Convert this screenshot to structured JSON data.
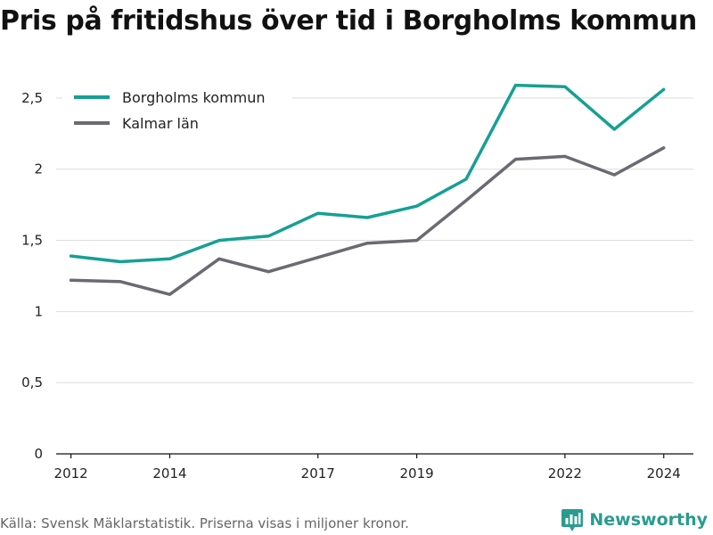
{
  "title": "Pris på fritidshus över tid i Borgholms kommun",
  "source": "Källa: Svensk Mäklarstatistik. Priserna visas i miljoner kronor.",
  "brand": {
    "name": "Newsworthy",
    "icon": "newsworthy-logo-icon",
    "color": "#2a9c8f"
  },
  "chart_data": {
    "type": "line",
    "title": "Pris på fritidshus över tid i Borgholms kommun",
    "x": [
      2012,
      2013,
      2014,
      2015,
      2016,
      2017,
      2018,
      2019,
      2020,
      2021,
      2022,
      2023,
      2024
    ],
    "x_tick_values": [
      2012,
      2014,
      2017,
      2019,
      2022,
      2024
    ],
    "x_tick_labels": [
      "2012",
      "2014",
      "2017",
      "2019",
      "2022",
      "2024"
    ],
    "xlim": [
      2011.7,
      2024.6
    ],
    "ylim": [
      0,
      2.7
    ],
    "y_ticks": [
      0,
      0.5,
      1,
      1.5,
      2,
      2.5
    ],
    "y_tick_labels": [
      "0",
      "0,5",
      "1",
      "1,5",
      "2",
      "2,5"
    ],
    "grid": "horizontal",
    "legend_position": "top-left",
    "series": [
      {
        "name": "Borgholms kommun",
        "color": "#16a094",
        "values": [
          1.39,
          1.35,
          1.37,
          1.5,
          1.53,
          1.69,
          1.66,
          1.74,
          1.93,
          2.59,
          2.58,
          2.28,
          2.56
        ]
      },
      {
        "name": "Kalmar län",
        "color": "#6b6a72",
        "values": [
          1.22,
          1.21,
          1.12,
          1.37,
          1.28,
          1.38,
          1.48,
          1.5,
          1.78,
          2.07,
          2.09,
          1.96,
          2.15
        ]
      }
    ]
  }
}
